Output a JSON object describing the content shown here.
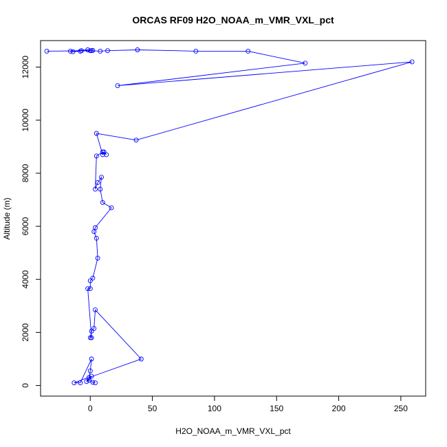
{
  "chart_data": {
    "type": "line",
    "title": "ORCAS RF09 H2O_NOAA_m_VMR_VXL_pct",
    "xlabel": "H2O_NOAA_m_VMR_VXL_pct",
    "ylabel": "Altitude (m)",
    "xlim": [
      -40,
      270
    ],
    "ylim": [
      -400,
      13000
    ],
    "xticks": [
      0,
      50,
      100,
      150,
      200,
      250
    ],
    "yticks": [
      0,
      2000,
      4000,
      6000,
      8000,
      10000,
      12000
    ],
    "xtick_labels": [
      "0",
      "50",
      "100",
      "150",
      "200",
      "250"
    ],
    "ytick_labels": [
      "0",
      "2000",
      "4000",
      "6000",
      "8000",
      "10000",
      "12000"
    ],
    "grid": false,
    "legend": "none",
    "series_color": "#0000ff",
    "marker": "open-circle",
    "series": [
      {
        "x": [
          4,
          2,
          -1,
          -3,
          1,
          -13,
          -8,
          1,
          0,
          -1,
          41,
          4,
          3,
          1,
          0,
          1,
          -2,
          0,
          0,
          2,
          6,
          5,
          3,
          4,
          17,
          10,
          8,
          9,
          6,
          4,
          5,
          10,
          13,
          11,
          10,
          5,
          37,
          259,
          22,
          173,
          127,
          85,
          38,
          14,
          8,
          0,
          -2,
          -16,
          -14,
          -8,
          -7,
          2,
          1,
          -35
        ],
        "y": [
          100,
          120,
          200,
          150,
          350,
          100,
          100,
          1000,
          550,
          300,
          1000,
          2850,
          2150,
          2050,
          1800,
          1800,
          3650,
          3650,
          3950,
          4050,
          4800,
          5550,
          5800,
          5950,
          6700,
          6900,
          7400,
          7850,
          7650,
          7400,
          8650,
          8800,
          8700,
          8800,
          8700,
          9500,
          9250,
          12200,
          11300,
          12150,
          12600,
          12600,
          12650,
          12620,
          12600,
          12620,
          12650,
          12600,
          12580,
          12600,
          12620,
          12630,
          12620,
          12600
        ]
      }
    ]
  }
}
